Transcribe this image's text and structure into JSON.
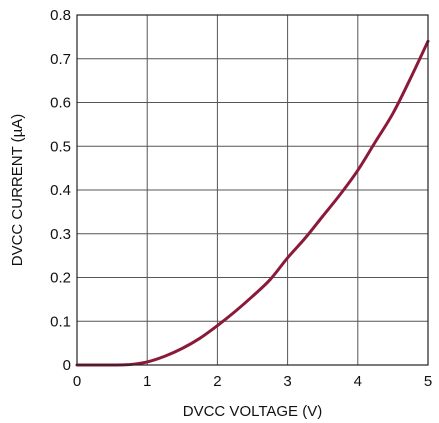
{
  "chart_data": {
    "type": "line",
    "xlabel": "DVCC VOLTAGE (V)",
    "ylabel": "DVCC CURRENT (µA)",
    "xlim": [
      0,
      5
    ],
    "ylim": [
      0,
      0.8
    ],
    "grid": true,
    "x_ticks": [
      "0",
      "1",
      "2",
      "3",
      "4",
      "5"
    ],
    "y_ticks": [
      "0",
      "0.1",
      "0.2",
      "0.3",
      "0.4",
      "0.5",
      "0.6",
      "0.7",
      "0.8"
    ],
    "series": [
      {
        "color": "#8b1a3a",
        "x": [
          0,
          0.25,
          0.5,
          0.75,
          1.0,
          1.25,
          1.5,
          1.75,
          2.0,
          2.25,
          2.5,
          2.75,
          3.0,
          3.25,
          3.5,
          3.75,
          4.0,
          4.25,
          4.5,
          4.75,
          5.0
        ],
        "y": [
          0.0,
          0.0,
          0.0,
          0.001,
          0.007,
          0.02,
          0.038,
          0.061,
          0.09,
          0.122,
          0.157,
          0.195,
          0.245,
          0.29,
          0.34,
          0.39,
          0.445,
          0.51,
          0.575,
          0.655,
          0.74
        ]
      }
    ]
  }
}
